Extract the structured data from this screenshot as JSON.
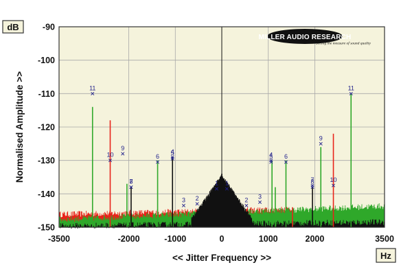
{
  "chart_data": {
    "type": "line",
    "xlabel": "<< Jitter Frequency >>",
    "ylabel": "Normalised Amplitude >>",
    "x_unit": "Hz",
    "y_unit": "dB",
    "xlim": [
      -3500,
      3500
    ],
    "ylim": [
      -150,
      -90
    ],
    "x_ticks": [
      "-3500",
      "-2000",
      "-1000",
      "0",
      "1000",
      "2000",
      "3500"
    ],
    "x_tick_values": [
      -3500,
      -2000,
      -1000,
      0,
      1000,
      2000,
      3500
    ],
    "y_ticks": [
      "-90",
      "-100",
      "-110",
      "-120",
      "-130",
      "-140",
      "-150"
    ],
    "y_tick_values": [
      -90,
      -100,
      -110,
      -120,
      -130,
      -140,
      -150
    ],
    "grid": true,
    "colors": {
      "background": "#f5f3dc",
      "grid": "#a8a8a8",
      "red_series": "#e8231a",
      "green_series": "#2fa82a",
      "black_series": "#111111",
      "marker_labels": "#1f1f8a"
    },
    "noise_floor": [
      {
        "color_role": "red",
        "from_x": -3500,
        "to_x": 1500,
        "level_start": -146.5,
        "level_end": -145.0
      },
      {
        "color_role": "green",
        "from_x": -3500,
        "to_x": 3500,
        "level_start": -148.0,
        "level_end": -144.0
      },
      {
        "color_role": "black",
        "from_x": -3500,
        "to_x": 3500,
        "level_start": -150.0,
        "level_end": -148.8
      }
    ],
    "central_peak": {
      "x": 0,
      "y": -134,
      "color_role": "black"
    },
    "spurs": [
      {
        "x": -2780,
        "y": -114,
        "color_role": "green"
      },
      {
        "x": -2400,
        "y": -118,
        "color_role": "red"
      },
      {
        "x": -2040,
        "y": -137,
        "color_role": "green"
      },
      {
        "x": -1950,
        "y": -138,
        "color_role": "black"
      },
      {
        "x": -1380,
        "y": -130,
        "color_role": "green"
      },
      {
        "x": -1060,
        "y": -129,
        "color_role": "black"
      },
      {
        "x": 1080,
        "y": -130,
        "color_role": "green"
      },
      {
        "x": 1150,
        "y": -138,
        "color_role": "green"
      },
      {
        "x": 1380,
        "y": -130,
        "color_role": "green"
      },
      {
        "x": 1520,
        "y": -144,
        "color_role": "red"
      },
      {
        "x": 1950,
        "y": -138,
        "color_role": "black"
      },
      {
        "x": 2130,
        "y": -126,
        "color_role": "green"
      },
      {
        "x": 2400,
        "y": -122,
        "color_role": "red"
      },
      {
        "x": 2780,
        "y": -110,
        "color_role": "green"
      }
    ],
    "markers": [
      {
        "label": "11",
        "x": -2780,
        "y": -110
      },
      {
        "label": "10",
        "x": -2400,
        "y": -130
      },
      {
        "label": "9",
        "x": -2130,
        "y": -128
      },
      {
        "label": "7",
        "x": -1950,
        "y": -138
      },
      {
        "label": "8",
        "x": -1950,
        "y": -138
      },
      {
        "label": "6",
        "x": -1380,
        "y": -130.5
      },
      {
        "label": "4",
        "x": -1060,
        "y": -129
      },
      {
        "label": "5",
        "x": -1060,
        "y": -129.5
      },
      {
        "label": "3",
        "x": -820,
        "y": -143.5
      },
      {
        "label": "2",
        "x": -530,
        "y": -143
      },
      {
        "label": "1",
        "x": -110,
        "y": -138.5
      },
      {
        "label": "1",
        "x": 110,
        "y": -138.5
      },
      {
        "label": "2",
        "x": 530,
        "y": -143.5
      },
      {
        "label": "3",
        "x": 820,
        "y": -142.5
      },
      {
        "label": "4",
        "x": 1060,
        "y": -130
      },
      {
        "label": "5",
        "x": 1060,
        "y": -130.5
      },
      {
        "label": "6",
        "x": 1380,
        "y": -130.5
      },
      {
        "label": "7",
        "x": 1950,
        "y": -137.5
      },
      {
        "label": "8",
        "x": 1950,
        "y": -138
      },
      {
        "label": "9",
        "x": 2130,
        "y": -125
      },
      {
        "label": "10",
        "x": 2400,
        "y": -137.5
      },
      {
        "label": "11",
        "x": 2780,
        "y": -110
      }
    ]
  },
  "branding": {
    "logo_text": "MILLER AUDIO RESEARCH",
    "logo_tagline": "Setting the measure of sound quality"
  }
}
